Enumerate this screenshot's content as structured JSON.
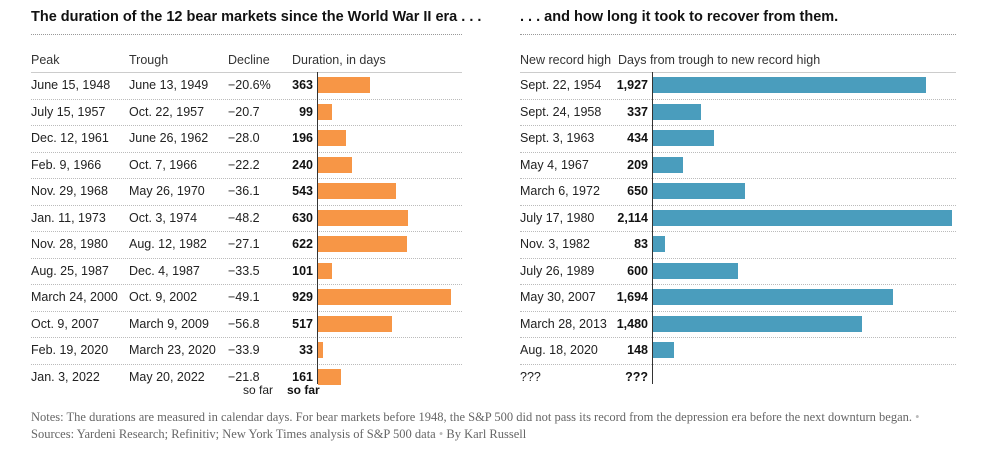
{
  "titles": {
    "left": "The duration of the 12 bear markets since the World War II era . . .",
    "right": ". . . and how long it took to recover from them."
  },
  "headers": {
    "peak": "Peak",
    "trough": "Trough",
    "decline": "Decline",
    "duration": "Duration, in days",
    "record_high": "New record high",
    "recovery": "Days from trough to new record high"
  },
  "colors": {
    "duration_bar": "#f79646",
    "recovery_bar": "#4a9dbd"
  },
  "chart_data": {
    "type": "bar",
    "rows": [
      {
        "peak": "June 15, 1948",
        "trough": "June 13, 1949",
        "decline": "−20.6%",
        "duration": 363,
        "duration_label": "363",
        "record_high": "Sept. 22, 1954",
        "recovery": 1927,
        "recovery_label": "1,927"
      },
      {
        "peak": "July 15, 1957",
        "trough": "Oct. 22, 1957",
        "decline": "−20.7",
        "duration": 99,
        "duration_label": "99",
        "record_high": "Sept. 24, 1958",
        "recovery": 337,
        "recovery_label": "337"
      },
      {
        "peak": "Dec. 12, 1961",
        "trough": "June 26, 1962",
        "decline": "−28.0",
        "duration": 196,
        "duration_label": "196",
        "record_high": "Sept. 3, 1963",
        "recovery": 434,
        "recovery_label": "434"
      },
      {
        "peak": "Feb. 9, 1966",
        "trough": "Oct. 7, 1966",
        "decline": "−22.2",
        "duration": 240,
        "duration_label": "240",
        "record_high": "May 4, 1967",
        "recovery": 209,
        "recovery_label": "209"
      },
      {
        "peak": "Nov. 29, 1968",
        "trough": "May 26, 1970",
        "decline": "−36.1",
        "duration": 543,
        "duration_label": "543",
        "record_high": "March 6, 1972",
        "recovery": 650,
        "recovery_label": "650"
      },
      {
        "peak": "Jan. 11, 1973",
        "trough": "Oct. 3, 1974",
        "decline": "−48.2",
        "duration": 630,
        "duration_label": "630",
        "record_high": "July 17, 1980",
        "recovery": 2114,
        "recovery_label": "2,114"
      },
      {
        "peak": "Nov. 28, 1980",
        "trough": "Aug. 12, 1982",
        "decline": "−27.1",
        "duration": 622,
        "duration_label": "622",
        "record_high": "Nov. 3, 1982",
        "recovery": 83,
        "recovery_label": "83"
      },
      {
        "peak": "Aug. 25, 1987",
        "trough": "Dec. 4, 1987",
        "decline": "−33.5",
        "duration": 101,
        "duration_label": "101",
        "record_high": "July 26, 1989",
        "recovery": 600,
        "recovery_label": "600"
      },
      {
        "peak": "March 24, 2000",
        "trough": "Oct. 9, 2002",
        "decline": "−49.1",
        "duration": 929,
        "duration_label": "929",
        "record_high": "May 30, 2007",
        "recovery": 1694,
        "recovery_label": "1,694"
      },
      {
        "peak": "Oct. 9, 2007",
        "trough": "March 9, 2009",
        "decline": "−56.8",
        "duration": 517,
        "duration_label": "517",
        "record_high": "March 28, 2013",
        "recovery": 1480,
        "recovery_label": "1,480"
      },
      {
        "peak": "Feb. 19, 2020",
        "trough": "March 23, 2020",
        "decline": "−33.9",
        "duration": 33,
        "duration_label": "33",
        "record_high": "Aug. 18, 2020",
        "recovery": 148,
        "recovery_label": "148"
      },
      {
        "peak": "Jan. 3, 2022",
        "trough": "May 20, 2022",
        "decline": "−21.8",
        "decline_note": "so far",
        "duration": 161,
        "duration_label": "161",
        "duration_note": "so far",
        "record_high": "???",
        "recovery": null,
        "recovery_label": "???"
      }
    ]
  },
  "notes": {
    "text": "Notes: The durations are measured in calendar days. For bear markets before 1948, the S&P 500 did not pass its record from the depression era before the next downturn began.",
    "sep": "•",
    "sources": "Sources: Yardeni Research; Refinitiv; New York Times analysis of S&P 500 data",
    "byline": "By Karl Russell"
  }
}
